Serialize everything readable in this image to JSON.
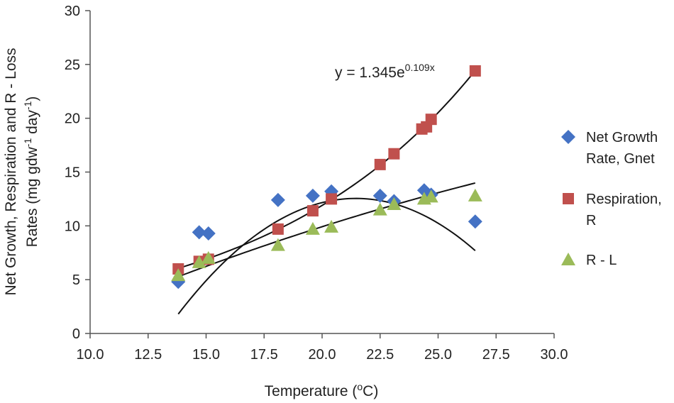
{
  "chart_data": {
    "type": "scatter",
    "title": "",
    "xlabel": {
      "prefix": "Temperature (",
      "sup": "o",
      "suffix": "C)"
    },
    "ylabel": {
      "line1": "Net Growth, Respiration and R - Loss",
      "line2": {
        "prefix": "Rates (mg gdw",
        "sup1": "-1",
        "mid": " day",
        "sup2": "-1",
        "suffix": ")"
      }
    },
    "xlim": [
      10.0,
      30.0
    ],
    "ylim": [
      0,
      30
    ],
    "x_ticks": [
      "10.0",
      "12.5",
      "15.0",
      "17.5",
      "20.0",
      "22.5",
      "25.0",
      "27.5",
      "30.0"
    ],
    "y_ticks": [
      "0",
      "5",
      "10",
      "15",
      "20",
      "25",
      "30"
    ],
    "grid": false,
    "legend_position": "right",
    "series": [
      {
        "name_lines": [
          "Net Growth",
          "Rate, Gnet"
        ],
        "marker": "diamond",
        "color": "#4472C4",
        "points": [
          [
            13.8,
            4.8
          ],
          [
            14.7,
            9.4
          ],
          [
            15.1,
            9.3
          ],
          [
            18.1,
            12.4
          ],
          [
            19.6,
            12.8
          ],
          [
            20.4,
            13.2
          ],
          [
            22.5,
            12.8
          ],
          [
            23.1,
            12.3
          ],
          [
            24.4,
            13.3
          ],
          [
            24.7,
            12.9
          ],
          [
            26.6,
            10.4
          ]
        ],
        "trendline": {
          "type": "poly2",
          "coefficients": [
            -71.84,
            7.866,
            -0.1833
          ],
          "x_range": [
            13.8,
            26.6
          ]
        }
      },
      {
        "name_lines": [
          "Respiration,",
          "R"
        ],
        "marker": "square",
        "color": "#C0504D",
        "points": [
          [
            13.8,
            6.0
          ],
          [
            14.7,
            6.7
          ],
          [
            15.1,
            6.9
          ],
          [
            18.1,
            9.7
          ],
          [
            19.6,
            11.4
          ],
          [
            20.4,
            12.5
          ],
          [
            22.5,
            15.7
          ],
          [
            23.1,
            16.7
          ],
          [
            24.3,
            19.0
          ],
          [
            24.5,
            19.2
          ],
          [
            24.7,
            19.9
          ],
          [
            26.6,
            24.4
          ]
        ],
        "trendline": {
          "type": "exp",
          "a": 1.345,
          "b": 0.109,
          "x_range": [
            13.8,
            26.6
          ]
        }
      },
      {
        "name_lines": [
          "R - L"
        ],
        "marker": "triangle",
        "color": "#9BBB59",
        "points": [
          [
            13.8,
            5.4
          ],
          [
            14.7,
            6.6
          ],
          [
            15.1,
            7.0
          ],
          [
            18.1,
            8.2
          ],
          [
            19.6,
            9.7
          ],
          [
            20.4,
            9.9
          ],
          [
            22.5,
            11.5
          ],
          [
            23.1,
            12.0
          ],
          [
            24.4,
            12.5
          ],
          [
            24.7,
            12.7
          ],
          [
            26.6,
            12.8
          ]
        ],
        "trendline": {
          "type": "poly2",
          "coefficients": [
            -7.92,
            1.1,
            -0.0104
          ],
          "x_range": [
            13.8,
            26.6
          ]
        }
      }
    ],
    "annotations": [
      {
        "text_main": "y = 1.345e",
        "text_sup": "0.109x"
      }
    ]
  }
}
